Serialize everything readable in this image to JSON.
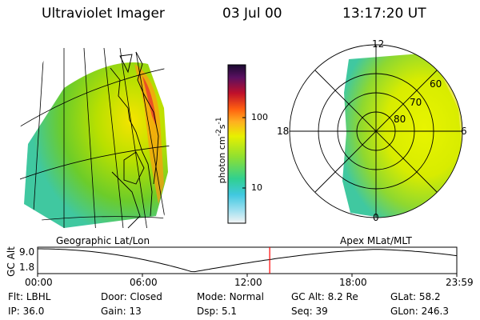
{
  "header": {
    "title": "Ultraviolet Imager",
    "date": "03 Jul 00",
    "time": "13:17:20 UT"
  },
  "colorbar": {
    "unit_label": "photon cm",
    "unit_sup1": "-2",
    "unit_s": "s",
    "unit_sup2": "-1",
    "ticks": [
      "100",
      "10"
    ]
  },
  "polar": {
    "mlt_labels": {
      "top": "12",
      "left": "18",
      "right": "6",
      "bottom": "0"
    },
    "lat_labels": [
      "60",
      "70",
      "80"
    ]
  },
  "projection_labels": {
    "left": "Geographic Lat/Lon",
    "right": "Apex MLat/MLT"
  },
  "altitude_plot": {
    "ylabel": "GC Alt",
    "ytick_top": "9.0",
    "ytick_bottom": "1.8",
    "xticks": [
      "00:00",
      "06:00",
      "12:00",
      "18:00",
      "23:59"
    ],
    "marker_color": "#ff0000"
  },
  "info": {
    "row1": [
      {
        "label": "Flt:",
        "value": "LBHL"
      },
      {
        "label": "Door:",
        "value": "Closed"
      },
      {
        "label": "Mode:",
        "value": "Normal"
      },
      {
        "label": "GC Alt:",
        "value": "8.2 Re"
      },
      {
        "label": "GLat:",
        "value": "58.2"
      }
    ],
    "row2": [
      {
        "label": "IP:",
        "value": "36.0"
      },
      {
        "label": "Gain:",
        "value": "13"
      },
      {
        "label": "Dsp:",
        "value": "5.1"
      },
      {
        "label": "Seq:",
        "value": "39"
      },
      {
        "label": "GLon:",
        "value": "246.3"
      }
    ]
  }
}
